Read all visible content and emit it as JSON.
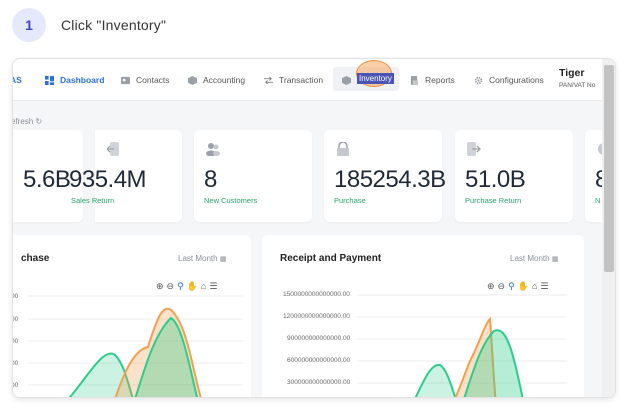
{
  "step": {
    "number": "1",
    "instruction": "Click \"Inventory\""
  },
  "nav": {
    "logo_partial": "AS",
    "items": [
      {
        "label": "Dashboard",
        "icon": "dashboard-icon"
      },
      {
        "label": "Contacts",
        "icon": "contacts-icon"
      },
      {
        "label": "Accounting",
        "icon": "accounting-icon"
      },
      {
        "label": "Transaction",
        "icon": "transaction-icon"
      },
      {
        "label": "Inventory",
        "icon": "inventory-icon"
      },
      {
        "label": "Reports",
        "icon": "reports-icon"
      },
      {
        "label": "Configurations",
        "icon": "configurations-icon"
      }
    ],
    "user_name": "Tiger",
    "user_sub": "PAN/VAT No"
  },
  "refresh_label": "efresh",
  "cards": [
    {
      "value": "5.6B",
      "label": ""
    },
    {
      "value": "935.4M",
      "label": "Sales Return"
    },
    {
      "value": "8",
      "label": "New Customers"
    },
    {
      "value": "185254.3B",
      "label": "Purchase"
    },
    {
      "value": "51.0B",
      "label": "Purchase Return"
    },
    {
      "value": "8",
      "label": "N"
    }
  ],
  "panels": [
    {
      "title": "chase",
      "period": "Last Month",
      "ticks": [
        "00",
        "00",
        "00",
        "00",
        "00"
      ]
    },
    {
      "title": "Receipt and Payment",
      "period": "Last Month",
      "ticks": [
        "1500000000000000.00",
        "1200000000000000.00",
        "900000000000000.00",
        "600000000000000.00",
        "300000000000000.00"
      ]
    }
  ],
  "colors": {
    "accent": "#2a6fd6",
    "green": "#28a46a",
    "orange": "#f0a050",
    "chart_green": "#2ecc8a"
  }
}
